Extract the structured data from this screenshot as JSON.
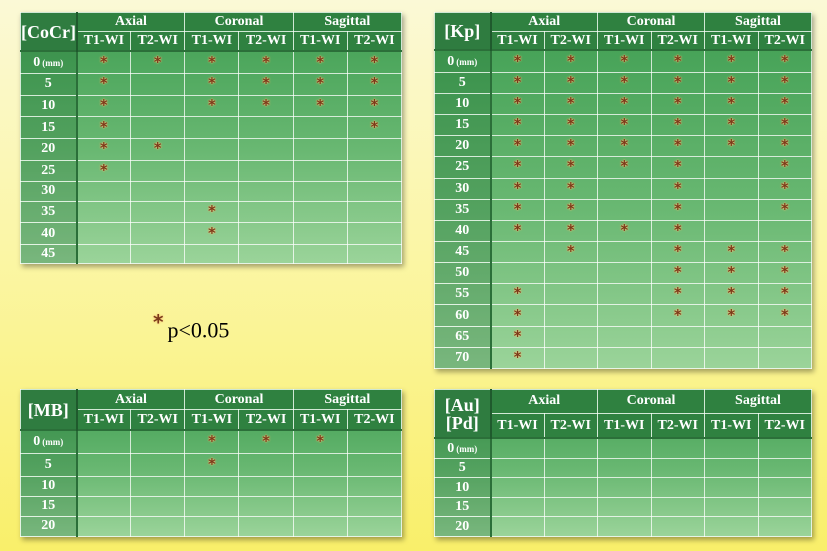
{
  "headers": {
    "groups": [
      "Axial",
      "Coronal",
      "Sagittal"
    ],
    "subcolumns": [
      "T1-WI",
      "T2-WI",
      "T1-WI",
      "T2-WI",
      "T1-WI",
      "T2-WI"
    ]
  },
  "unit_label": "(mm)",
  "star_symbol": "*",
  "legend": {
    "symbol": "*",
    "text": "p<0.05"
  },
  "colors": {
    "panel_green": "#4fae5d",
    "title_dark_green": "#2f7c40",
    "star": "#7a3a1a",
    "background_yellow": "#f9ef6a"
  },
  "tables": [
    {
      "id": "cocr",
      "title": "[CoCr]",
      "rows": [
        {
          "label": "0",
          "unit": true,
          "marks": [
            1,
            1,
            1,
            1,
            1,
            1
          ]
        },
        {
          "label": "5",
          "marks": [
            1,
            0,
            1,
            1,
            1,
            1
          ]
        },
        {
          "label": "10",
          "marks": [
            1,
            0,
            1,
            1,
            1,
            1
          ]
        },
        {
          "label": "15",
          "marks": [
            1,
            0,
            0,
            0,
            0,
            1
          ]
        },
        {
          "label": "20",
          "marks": [
            1,
            1,
            0,
            0,
            0,
            0
          ]
        },
        {
          "label": "25",
          "marks": [
            1,
            0,
            0,
            0,
            0,
            0
          ]
        },
        {
          "label": "30",
          "marks": [
            0,
            0,
            0,
            0,
            0,
            0
          ]
        },
        {
          "label": "35",
          "marks": [
            0,
            0,
            1,
            0,
            0,
            0
          ]
        },
        {
          "label": "40",
          "marks": [
            0,
            0,
            1,
            0,
            0,
            0
          ]
        },
        {
          "label": "45",
          "marks": [
            0,
            0,
            0,
            0,
            0,
            0
          ]
        }
      ]
    },
    {
      "id": "kp",
      "title": "[Kp]",
      "rows": [
        {
          "label": "0",
          "unit": true,
          "marks": [
            1,
            1,
            1,
            1,
            1,
            1
          ]
        },
        {
          "label": "5",
          "marks": [
            1,
            1,
            1,
            1,
            1,
            1
          ]
        },
        {
          "label": "10",
          "marks": [
            1,
            1,
            1,
            1,
            1,
            1
          ]
        },
        {
          "label": "15",
          "marks": [
            1,
            1,
            1,
            1,
            1,
            1
          ]
        },
        {
          "label": "20",
          "marks": [
            1,
            1,
            1,
            1,
            1,
            1
          ]
        },
        {
          "label": "25",
          "marks": [
            1,
            1,
            1,
            1,
            0,
            1
          ]
        },
        {
          "label": "30",
          "marks": [
            1,
            1,
            0,
            1,
            0,
            1
          ]
        },
        {
          "label": "35",
          "marks": [
            1,
            1,
            0,
            1,
            0,
            1
          ]
        },
        {
          "label": "40",
          "marks": [
            1,
            1,
            1,
            1,
            0,
            0
          ]
        },
        {
          "label": "45",
          "marks": [
            0,
            1,
            0,
            1,
            1,
            1
          ]
        },
        {
          "label": "50",
          "marks": [
            0,
            0,
            0,
            1,
            1,
            1
          ]
        },
        {
          "label": "55",
          "marks": [
            1,
            0,
            0,
            1,
            1,
            1
          ]
        },
        {
          "label": "60",
          "marks": [
            1,
            0,
            0,
            1,
            1,
            1
          ]
        },
        {
          "label": "65",
          "marks": [
            1,
            0,
            0,
            0,
            0,
            0
          ]
        },
        {
          "label": "70",
          "marks": [
            1,
            0,
            0,
            0,
            0,
            0
          ]
        }
      ]
    },
    {
      "id": "mb",
      "title": "[MB]",
      "rows": [
        {
          "label": "0",
          "unit": true,
          "marks": [
            0,
            0,
            1,
            1,
            1,
            0
          ]
        },
        {
          "label": "5",
          "marks": [
            0,
            0,
            1,
            0,
            0,
            0
          ]
        },
        {
          "label": "10",
          "marks": [
            0,
            0,
            0,
            0,
            0,
            0
          ]
        },
        {
          "label": "15",
          "marks": [
            0,
            0,
            0,
            0,
            0,
            0
          ]
        },
        {
          "label": "20",
          "marks": [
            0,
            0,
            0,
            0,
            0,
            0
          ]
        }
      ]
    },
    {
      "id": "aupd",
      "title_line1": "[Au]",
      "title_line2": "[Pd]",
      "rows": [
        {
          "label": "0",
          "unit": true,
          "marks": [
            0,
            0,
            0,
            0,
            0,
            0
          ]
        },
        {
          "label": "5",
          "marks": [
            0,
            0,
            0,
            0,
            0,
            0
          ]
        },
        {
          "label": "10",
          "marks": [
            0,
            0,
            0,
            0,
            0,
            0
          ]
        },
        {
          "label": "15",
          "marks": [
            0,
            0,
            0,
            0,
            0,
            0
          ]
        },
        {
          "label": "20",
          "marks": [
            0,
            0,
            0,
            0,
            0,
            0
          ]
        }
      ]
    }
  ]
}
